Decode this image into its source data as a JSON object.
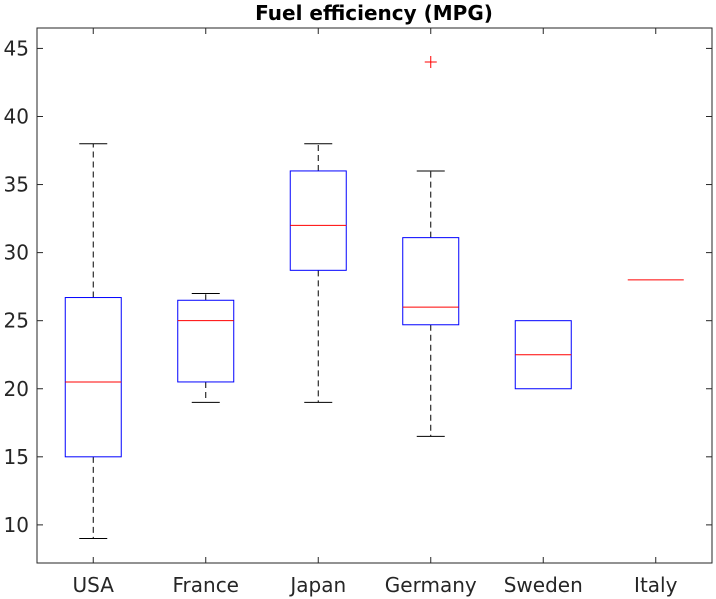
{
  "chart_data": {
    "type": "box",
    "title": "Fuel efficiency (MPG)",
    "xlabel": "",
    "ylabel": "",
    "ylim": [
      7.2,
      46.5
    ],
    "yticks": [
      10,
      15,
      20,
      25,
      30,
      35,
      40,
      45
    ],
    "categories": [
      "USA",
      "France",
      "Japan",
      "Germany",
      "Sweden",
      "Italy"
    ],
    "boxes": [
      {
        "category": "USA",
        "whisker_low": 9,
        "q1": 15,
        "median": 20.5,
        "q3": 26.7,
        "whisker_high": 38,
        "outliers": []
      },
      {
        "category": "France",
        "whisker_low": 19,
        "q1": 20.5,
        "median": 25,
        "q3": 26.5,
        "whisker_high": 27,
        "outliers": []
      },
      {
        "category": "Japan",
        "whisker_low": 19,
        "q1": 28.7,
        "median": 32,
        "q3": 36,
        "whisker_high": 38,
        "outliers": []
      },
      {
        "category": "Germany",
        "whisker_low": 16.5,
        "q1": 24.7,
        "median": 26,
        "q3": 31.1,
        "whisker_high": 36,
        "outliers": [
          44
        ]
      },
      {
        "category": "Sweden",
        "whisker_low": 20,
        "q1": 20,
        "median": 22.5,
        "q3": 25,
        "whisker_high": 25,
        "outliers": []
      },
      {
        "category": "Italy",
        "whisker_low": 28,
        "q1": 28,
        "median": 28,
        "q3": 28,
        "whisker_high": 28,
        "outliers": []
      }
    ],
    "colors": {
      "box": "#0000ff",
      "median": "#ff0000",
      "whisker": "#000000",
      "outlier": "#ff0000",
      "axis": "#262626"
    },
    "grid": false,
    "legend": "none"
  }
}
